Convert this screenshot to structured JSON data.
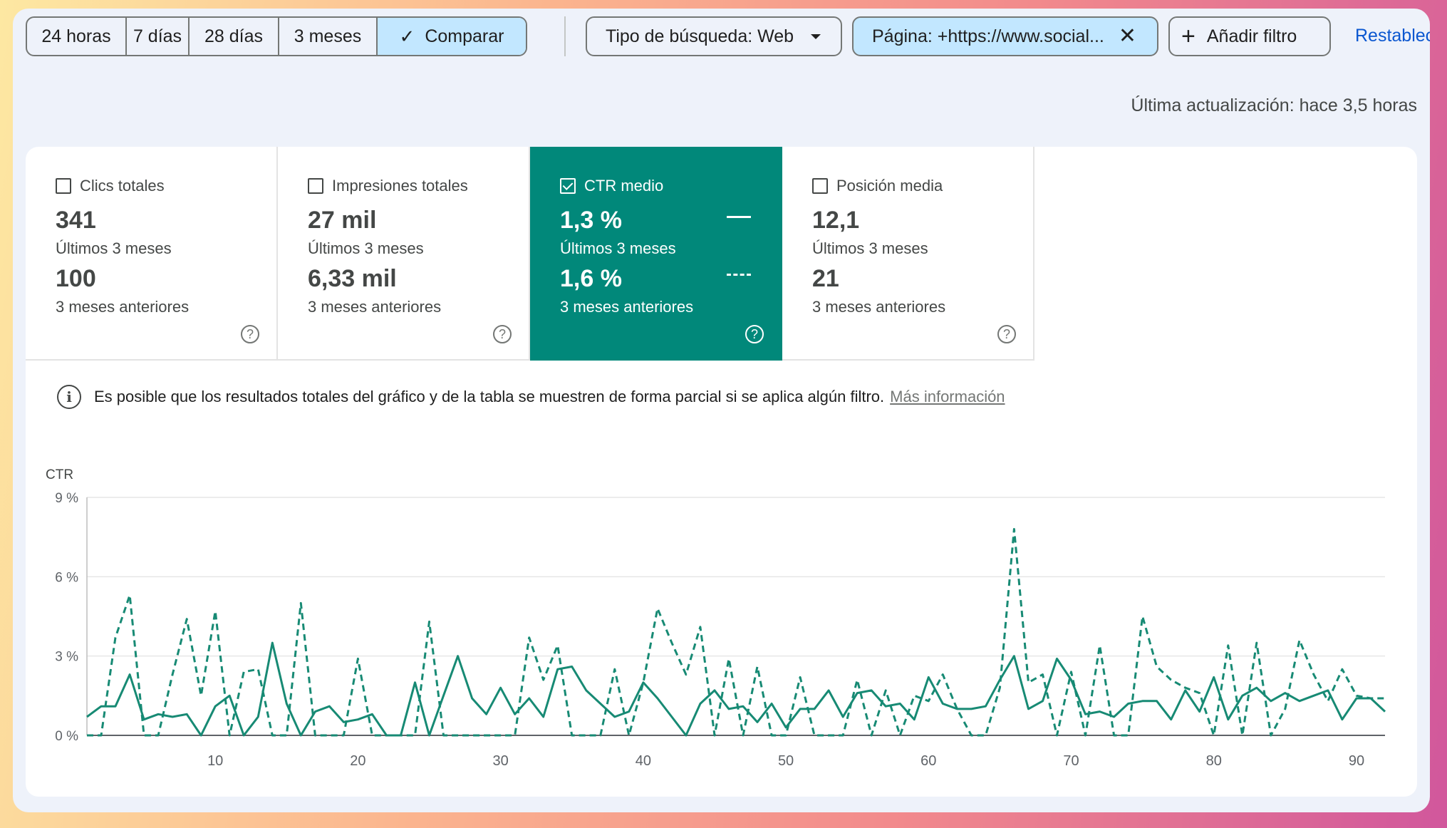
{
  "toolbar": {
    "ranges": [
      {
        "label": "24 horas",
        "active": false
      },
      {
        "label": "7 días",
        "active": false
      },
      {
        "label": "28 días",
        "active": false
      },
      {
        "label": "3 meses",
        "active": false
      },
      {
        "label": "Comparar",
        "active": true
      }
    ],
    "search_type": "Tipo de búsqueda: Web",
    "page_filter": "Página: +https://www.social...",
    "add_filter": "Añadir filtro",
    "reset": "Restablec"
  },
  "last_update": "Última actualización: hace 3,5 horas",
  "metrics": [
    {
      "title": "Clics totales",
      "value1": "341",
      "period1": "Últimos 3 meses",
      "value2": "100",
      "period2": "3 meses anteriores",
      "checked": false
    },
    {
      "title": "Impresiones totales",
      "value1": "27 mil",
      "period1": "Últimos 3 meses",
      "value2": "6,33 mil",
      "period2": "3 meses anteriores",
      "checked": false
    },
    {
      "title": "CTR medio",
      "value1": "1,3 %",
      "period1": "Últimos 3 meses",
      "value2": "1,6 %",
      "period2": "3 meses anteriores",
      "checked": true
    },
    {
      "title": "Posición media",
      "value1": "12,1",
      "period1": "Últimos 3 meses",
      "value2": "21",
      "period2": "3 meses anteriores",
      "checked": false
    }
  ],
  "notice": {
    "text": "Es posible que los resultados totales del gráfico y de la tabla se muestren de forma parcial si se aplica algún filtro.",
    "link": "Más información"
  },
  "colors": {
    "accent": "#01887a",
    "line": "#178a74",
    "active_chip": "#c2e7ff"
  },
  "chart_data": {
    "type": "line",
    "ylabel": "CTR",
    "ylim": [
      0,
      9
    ],
    "yticks": [
      "0 %",
      "3 %",
      "6 %",
      "9 %"
    ],
    "xlim": [
      1,
      92
    ],
    "xticks": [
      10,
      20,
      30,
      40,
      50,
      60,
      70,
      80,
      90
    ],
    "grid": true,
    "series": [
      {
        "style": "solid",
        "values": [
          0.7,
          1.1,
          1.1,
          2.3,
          0.6,
          0.8,
          0.7,
          0.8,
          0,
          1.1,
          1.5,
          0,
          0.7,
          3.5,
          1.2,
          0,
          0.9,
          1.1,
          0.5,
          0.6,
          0.8,
          0,
          0,
          2,
          0,
          1.5,
          3,
          1.4,
          0.8,
          1.8,
          0.8,
          1.4,
          0.7,
          2.5,
          2.6,
          1.7,
          1.2,
          0.7,
          0.9,
          2,
          1.4,
          0.7,
          0,
          1.2,
          1.7,
          1,
          1.1,
          0.5,
          1.2,
          0.3,
          1,
          1,
          1.7,
          0.7,
          1.6,
          1.7,
          1.1,
          1.2,
          0.6,
          2.2,
          1.2,
          1,
          1,
          1.1,
          2.1,
          3,
          1,
          1.3,
          2.9,
          2.1,
          0.8,
          0.9,
          0.7,
          1.2,
          1.3,
          1.3,
          0.6,
          1.7,
          0.9,
          2.2,
          0.6,
          1.5,
          1.8,
          1.3,
          1.6,
          1.3,
          1.5,
          1.7,
          0.6,
          1.4,
          1.4,
          0.9
        ]
      },
      {
        "style": "dashed",
        "values": [
          0,
          0,
          3.7,
          5.3,
          0,
          0,
          2.3,
          4.4,
          1.5,
          4.7,
          0,
          2.4,
          2.5,
          0,
          0,
          5,
          0,
          0,
          0,
          2.9,
          0,
          0,
          0,
          0,
          4.3,
          0,
          0,
          0,
          0,
          0,
          0,
          3.7,
          2.1,
          3.4,
          0,
          0,
          0,
          2.5,
          0,
          2,
          4.8,
          3.5,
          2.3,
          4.1,
          0,
          2.9,
          0,
          2.6,
          0,
          0,
          2.2,
          0,
          0,
          0,
          2.1,
          0,
          1.7,
          0,
          1.5,
          1.3,
          2.3,
          1,
          0,
          0,
          1.8,
          7.8,
          2,
          2.3,
          0,
          2.4,
          0,
          3.4,
          0,
          0,
          4.5,
          2.6,
          2.1,
          1.8,
          1.6,
          0,
          3.4,
          0,
          3.5,
          0,
          1,
          3.6,
          2.3,
          1.3,
          2.5,
          1.5,
          1.4,
          1.4
        ]
      }
    ]
  }
}
